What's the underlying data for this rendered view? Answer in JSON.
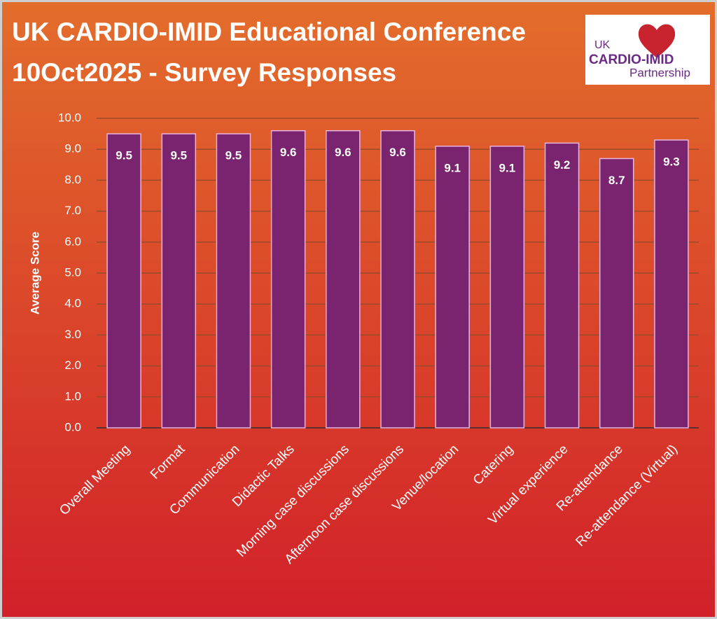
{
  "chart_data": {
    "type": "bar",
    "title": "UK CARDIO-IMID Educational Conference",
    "subtitle": "10Oct2025 - Survey Responses",
    "y_label": "Average Score",
    "categories": [
      "Overall Meeting",
      "Format",
      "Communication",
      "Didactic Talks",
      "Morning case discussions",
      "Afternoon case discussions",
      "Venue/location",
      "Catering",
      "Virtual experience",
      "Re-attendance",
      "Re-attendance (Virtual)"
    ],
    "values": [
      9.5,
      9.5,
      9.5,
      9.6,
      9.6,
      9.6,
      9.1,
      9.1,
      9.2,
      8.7,
      9.3
    ],
    "color": "#7a2470",
    "ylim": [
      0,
      10
    ],
    "yticks": [
      {
        "value": 0,
        "label": "0.0"
      },
      {
        "value": 1,
        "label": "1.0"
      },
      {
        "value": 2,
        "label": "2.0"
      },
      {
        "value": 3,
        "label": "3.0"
      },
      {
        "value": 4,
        "label": "4.0"
      },
      {
        "value": 5,
        "label": "5.0"
      },
      {
        "value": 6,
        "label": "6.0"
      },
      {
        "value": 7,
        "label": "7.0"
      },
      {
        "value": 8,
        "label": "8.0"
      },
      {
        "value": 9,
        "label": "9.0"
      },
      {
        "value": 10,
        "label": "10.0"
      }
    ],
    "grid": true
  },
  "logo": {
    "line1": "UK",
    "line2": "CARDIO-IMID",
    "line3": "Partnership"
  }
}
